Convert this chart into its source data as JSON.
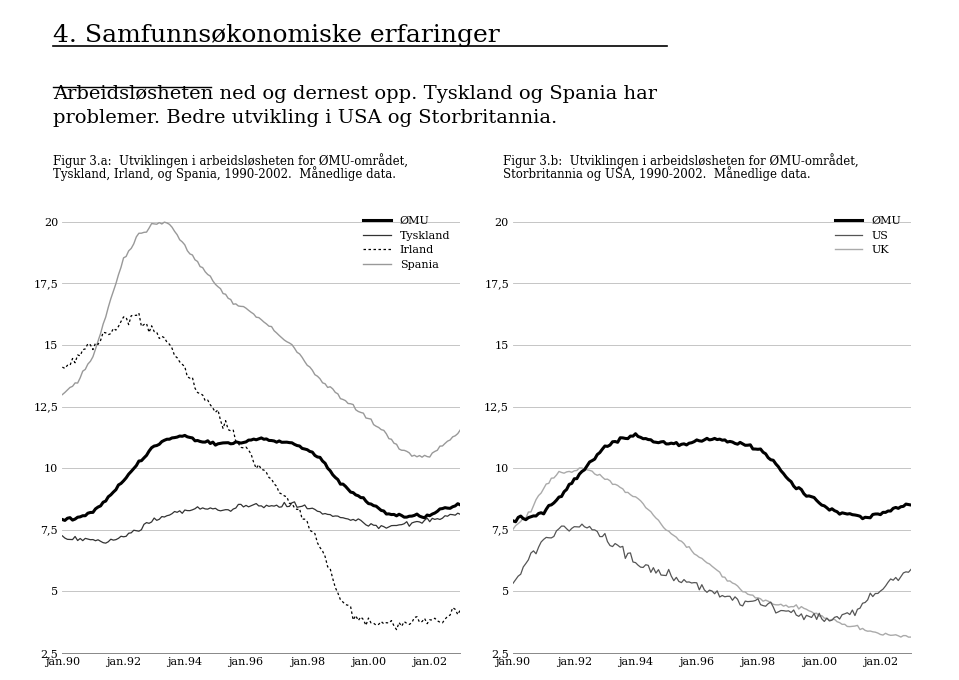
{
  "title_main": "4. Samfunnsøkonomiske erfaringer",
  "subtitle_line1": "Arbeidsløsheten ned og dernest opp. Tyskland og Spania har",
  "subtitle_line2": "problemer. Bedre utvikling i USA og Storbritannia.",
  "subtitle_underline_word": "Arbeidsløsheten",
  "fig_a_caption_line1": "Figur 3.a:  Utviklingen i arbeidsløsheten for ØMU-området,",
  "fig_a_caption_line2": "Tyskland, Irland, og Spania, 1990-2002.  Månedlige data.",
  "fig_b_caption_line1": "Figur 3.b:  Utviklingen i arbeidsløsheten for ØMU-området,",
  "fig_b_caption_line2": "Storbritannia og USA, 1990-2002.  Månedlige data.",
  "ylim": [
    2.5,
    21.0
  ],
  "yticks": [
    2.5,
    5.0,
    7.5,
    10.0,
    12.5,
    15.0,
    17.5,
    20.0
  ],
  "ytick_labels": [
    "2,5",
    "5",
    "7,5",
    "10",
    "12,5",
    "15",
    "17,5",
    "20"
  ],
  "xtick_positions": [
    0,
    24,
    48,
    72,
    96,
    120,
    144
  ],
  "xtick_labels": [
    "jan.90",
    "jan.92",
    "jan.94",
    "jan.96",
    "jan.98",
    "jan.00",
    "jan.02"
  ],
  "n_months": 157,
  "background_color": "#ffffff",
  "grid_color": "#bbbbbb",
  "line_color_omu": "#000000",
  "line_color_tyskland": "#333333",
  "line_color_irland": "#000000",
  "line_color_spania": "#999999",
  "line_color_us": "#555555",
  "line_color_uk": "#aaaaaa",
  "legend_a": [
    "ØMU",
    "Tyskland",
    "Irland",
    "Spania"
  ],
  "legend_b": [
    "ØMU",
    "US",
    "UK"
  ]
}
